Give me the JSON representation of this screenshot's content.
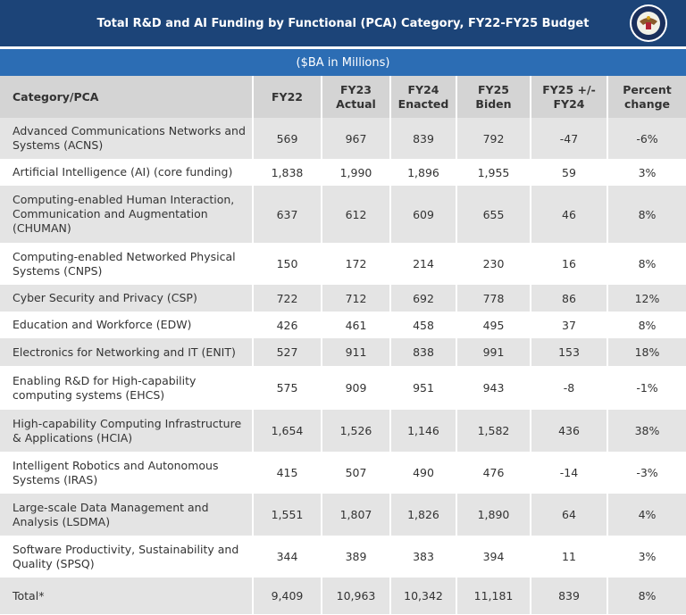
{
  "header": {
    "title": "Total R&D and AI Funding by Functional (PCA) Category, FY22-FY25 Budget",
    "subtitle": "($BA in Millions)"
  },
  "table": {
    "columns": [
      "Category/PCA",
      "FY22",
      "FY23 Actual",
      "FY24 Enacted",
      "FY25 Biden",
      "FY25 +/- FY24",
      "Percent change"
    ],
    "rows": [
      [
        "Advanced Communications Networks and Systems (ACNS)",
        "569",
        "967",
        "839",
        "792",
        "-47",
        "-6%"
      ],
      [
        "Artificial Intelligence (AI) (core funding)",
        "1,838",
        "1,990",
        "1,896",
        "1,955",
        "59",
        "3%"
      ],
      [
        "Computing-enabled Human Interaction, Communication and Augmentation (CHUMAN)",
        "637",
        "612",
        "609",
        "655",
        "46",
        "8%"
      ],
      [
        "Computing-enabled Networked Physical Systems (CNPS)",
        "150",
        "172",
        "214",
        "230",
        "16",
        "8%"
      ],
      [
        "Cyber Security and Privacy (CSP)",
        "722",
        "712",
        "692",
        "778",
        "86",
        "12%"
      ],
      [
        "Education and Workforce (EDW)",
        "426",
        "461",
        "458",
        "495",
        "37",
        "8%"
      ],
      [
        "Electronics for Networking and IT (ENIT)",
        "527",
        "911",
        "838",
        "991",
        "153",
        "18%"
      ],
      [
        "Enabling R&D for High-capability computing systems (EHCS)",
        "575",
        "909",
        "951",
        "943",
        "-8",
        "-1%"
      ],
      [
        "High-capability Computing Infrastructure & Applications (HCIA)",
        "1,654",
        "1,526",
        "1,146",
        "1,582",
        "436",
        "38%"
      ],
      [
        "Intelligent Robotics and Autonomous Systems (IRAS)",
        "415",
        "507",
        "490",
        "476",
        "-14",
        "-3%"
      ],
      [
        "Large-scale Data Management and Analysis (LSDMA)",
        "1,551",
        "1,807",
        "1,826",
        "1,890",
        "64",
        "4%"
      ],
      [
        "Software Productivity, Sustainability and Quality (SPSQ)",
        "344",
        "389",
        "383",
        "394",
        "11",
        "3%"
      ],
      [
        "Total*",
        "9,409",
        "10,963",
        "10,342",
        "11,181",
        "839",
        "8%"
      ]
    ]
  }
}
